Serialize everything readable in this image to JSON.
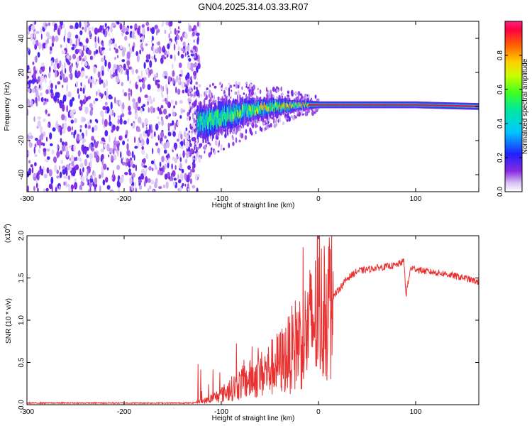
{
  "title": "GN04.2025.314.03.33.R07",
  "colors": {
    "snr_line": "#e83232",
    "axis": "#000000",
    "background": "#ffffff"
  },
  "chart_data": [
    {
      "type": "heatmap",
      "xlabel": "Height of straight line (km)",
      "ylabel": "Frequency (Hz)",
      "xlim": [
        -300,
        165
      ],
      "ylim": [
        -50,
        50
      ],
      "x_ticks": [
        -300,
        -200,
        -100,
        0,
        100
      ],
      "x_tick_labels": [
        "-300",
        "-200",
        "-100",
        "0",
        "100"
      ],
      "y_ticks": [
        -40,
        -20,
        0,
        20,
        40
      ],
      "y_tick_labels": [
        "-40",
        "-20",
        "0",
        "20",
        "40"
      ],
      "noise_region_x": [
        -300,
        -122
      ],
      "noise_region_edge_x": -130,
      "signal_track": {
        "x": [
          -125,
          -100,
          -80,
          -60,
          -40,
          -20,
          0,
          20,
          50,
          80,
          100,
          130,
          165
        ],
        "center_hz": [
          -10,
          -6,
          -3,
          -1,
          0,
          1,
          1,
          1,
          1,
          1,
          1,
          0.5,
          0
        ],
        "half_width_hz": [
          10,
          9,
          8,
          6,
          5,
          3,
          2,
          2,
          2,
          2,
          2,
          2,
          2
        ]
      },
      "colorbar": {
        "label": "Normalized spectral amplitude",
        "range": [
          0,
          1
        ],
        "ticks": [
          0.0,
          0.2,
          0.4,
          0.6,
          0.8
        ],
        "tick_labels": [
          "0.0",
          "0.2",
          "0.4",
          "0.6",
          "0.8"
        ]
      }
    },
    {
      "type": "line",
      "xlabel": "Height of straight line (km)",
      "ylabel": "SNR (10 * v/v)",
      "multiplier": "(x10",
      "multiplier_exp": "4",
      "multiplier_close": ")",
      "xlim": [
        -300,
        165
      ],
      "ylim": [
        0,
        2.0
      ],
      "x_ticks": [
        -300,
        -200,
        -100,
        0,
        100
      ],
      "x_tick_labels": [
        "-300",
        "-200",
        "-100",
        "0",
        "100"
      ],
      "y_ticks": [
        0,
        0.5,
        1.0,
        1.5,
        2.0
      ],
      "y_tick_labels": [
        "0.0",
        "0.5",
        "1.0",
        "1.5",
        "2.0"
      ],
      "series": [
        {
          "name": "SNR",
          "x": [
            -300,
            -200,
            -130,
            -115,
            -100,
            -80,
            -60,
            -40,
            -30,
            -22,
            -15,
            -10,
            -5,
            0,
            10,
            20,
            30,
            40,
            60,
            80,
            88,
            90,
            95,
            110,
            130,
            150,
            165
          ],
          "values": [
            0.02,
            0.02,
            0.02,
            0.05,
            0.12,
            0.25,
            0.35,
            0.5,
            0.6,
            0.75,
            0.8,
            0.9,
            1.0,
            1.05,
            1.2,
            1.35,
            1.5,
            1.58,
            1.62,
            1.65,
            1.7,
            1.3,
            1.62,
            1.58,
            1.55,
            1.5,
            1.45
          ]
        }
      ]
    }
  ]
}
